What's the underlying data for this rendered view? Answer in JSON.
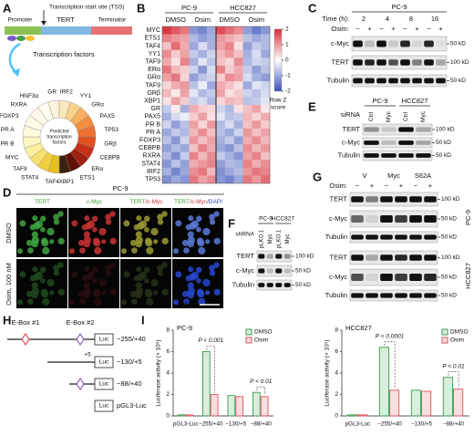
{
  "highlight": "MYC",
  "panels": {
    "A": {
      "letter": "A",
      "tss": "Transcription start site (TSS)",
      "promoter": "Promoter",
      "gene": "TERT",
      "terminator": "Terminator",
      "tf": "Transcription factors",
      "center": [
        "Predicted",
        "transcription",
        "factors"
      ],
      "factors": [
        "GR",
        "IRF2",
        "YY1",
        "GRα",
        "PAX5",
        "TP53",
        "GRβ",
        "CEBPB",
        "ERα",
        "ETS1",
        "XBP1",
        "TAF4",
        "STAT4",
        "TAF9",
        "MYC",
        "PR B",
        "PR A",
        "FOXP3",
        "RXRA",
        "HNF3α"
      ]
    },
    "B": {
      "letter": "B",
      "groups": [
        "PC-9",
        "HCC827"
      ],
      "conditions": [
        "DMSO",
        "Osim",
        "DMSO",
        "Osim"
      ],
      "rows": [
        "MYC",
        "ETS1",
        "TAF4",
        "YY1",
        "TAF9",
        "ERα",
        "GRα",
        "TAF9",
        "GRβ",
        "XBP1",
        "GR",
        "PAX5",
        "PR B",
        "PR A",
        "FOXP3",
        "CEBPB",
        "RXRA",
        "STAT4",
        "IRF2",
        "TP53"
      ],
      "matrix": [
        [
          1.9,
          1.6,
          1.3,
          -1.2,
          -1.4,
          -1.0,
          1.7,
          1.4,
          1.1,
          -1.1,
          -1.5,
          -1.2
        ],
        [
          1.2,
          1.0,
          0.9,
          -0.8,
          -1.1,
          -0.9,
          1.0,
          0.8,
          0.6,
          -0.7,
          -1.0,
          -0.8
        ],
        [
          0.6,
          1.4,
          0.8,
          -1.0,
          -0.4,
          -0.9,
          0.9,
          1.2,
          0.3,
          -1.1,
          -0.6,
          -0.8
        ],
        [
          1.1,
          0.5,
          0.9,
          -0.6,
          -0.9,
          -0.5,
          0.7,
          1.0,
          0.6,
          -0.9,
          -0.4,
          -1.0
        ],
        [
          0.8,
          0.3,
          1.2,
          -0.9,
          -0.3,
          -0.7,
          0.6,
          0.4,
          1.1,
          -0.8,
          -0.5,
          -0.6
        ],
        [
          1.3,
          0.7,
          0.5,
          -0.5,
          -1.2,
          -0.4,
          1.2,
          0.5,
          0.8,
          -0.6,
          -1.1,
          -0.7
        ],
        [
          0.9,
          1.3,
          0.4,
          -1.1,
          -0.7,
          -0.5,
          0.5,
          1.1,
          0.9,
          -0.4,
          -0.9,
          -1.1
        ],
        [
          0.4,
          0.8,
          1.0,
          -0.7,
          -0.2,
          -1.0,
          0.8,
          0.6,
          0.3,
          -1.0,
          -0.3,
          -0.5
        ],
        [
          0.7,
          0.2,
          0.9,
          -0.3,
          -0.8,
          -0.6,
          0.9,
          0.3,
          0.5,
          -0.5,
          -0.7,
          -0.4
        ],
        [
          0.3,
          0.9,
          0.5,
          -0.6,
          -0.4,
          -0.8,
          0.4,
          0.7,
          0.6,
          -0.7,
          -0.6,
          -0.3
        ],
        [
          -0.6,
          0.2,
          -0.9,
          0.8,
          0.5,
          0.4,
          -0.5,
          -0.8,
          0.3,
          0.6,
          0.9,
          0.2
        ],
        [
          -0.9,
          -0.4,
          -0.2,
          0.5,
          0.9,
          0.3,
          -0.3,
          -0.7,
          -0.6,
          0.7,
          0.4,
          0.8
        ],
        [
          -0.5,
          -1.1,
          -0.7,
          0.9,
          0.4,
          1.0,
          -0.8,
          -0.4,
          -0.9,
          0.6,
          1.0,
          0.5
        ],
        [
          -1.0,
          -0.6,
          -0.8,
          0.7,
          1.1,
          0.6,
          -0.7,
          -1.0,
          -0.5,
          1.0,
          0.6,
          0.9
        ],
        [
          -0.7,
          -1.2,
          -0.5,
          1.0,
          0.6,
          0.9,
          -0.9,
          -0.6,
          -1.1,
          0.8,
          1.1,
          0.7
        ],
        [
          -1.1,
          -0.8,
          -1.0,
          0.6,
          1.2,
          0.8,
          -1.0,
          -1.2,
          -0.7,
          1.1,
          0.7,
          1.0
        ],
        [
          -0.8,
          -1.3,
          -0.6,
          1.2,
          0.7,
          1.1,
          -0.6,
          -0.9,
          -1.2,
          0.9,
          1.2,
          0.6
        ],
        [
          -1.2,
          -0.7,
          -1.1,
          0.8,
          1.0,
          1.2,
          -1.1,
          -0.8,
          -0.9,
          1.2,
          0.8,
          1.1
        ],
        [
          -0.9,
          -1.4,
          -1.0,
          1.1,
          1.3,
          0.7,
          -1.3,
          -1.0,
          -0.8,
          1.0,
          1.3,
          1.2
        ],
        [
          -1.3,
          -1.0,
          -1.2,
          1.3,
          0.9,
          1.1,
          -1.2,
          -1.4,
          -1.0,
          1.3,
          1.0,
          1.4
        ]
      ],
      "zlim": [
        -2,
        2
      ],
      "zticks": [
        2,
        1,
        0,
        -1,
        -2
      ],
      "colorbar_label": [
        "Row Z",
        "score"
      ]
    },
    "C": {
      "letter": "C",
      "cell": "PC-9",
      "time_label": "Time (h):",
      "times": [
        2,
        4,
        8,
        16
      ],
      "osim_label": "Osim:",
      "osim": [
        "−",
        "+",
        "−",
        "+",
        "−",
        "+",
        "−",
        "+"
      ],
      "proteins": [
        "c-Myc",
        "TERT",
        "Tubulin"
      ],
      "markers": [
        "50 kD",
        "100 kD",
        "50 kD"
      ]
    },
    "D": {
      "letter": "D",
      "cell": "PC-9",
      "headers": [
        [
          "TERT"
        ],
        [
          "c-Myc"
        ],
        [
          "TERT",
          "/c-Myc"
        ],
        [
          "TERT",
          "/c-Myc",
          "/DAPI"
        ]
      ],
      "rows": [
        "DMSO",
        "Osim, 100 nM"
      ],
      "scale": "25 µm"
    },
    "E": {
      "letter": "E",
      "cells": [
        "PC-9",
        "HCC827"
      ],
      "sirna": "siRNA",
      "lanes": [
        "Ctrl",
        "Myc",
        "Ctrl",
        "Myc"
      ],
      "proteins": [
        "TERT",
        "c-Myc",
        "Tubulin"
      ],
      "markers": [
        "100 kD",
        "50 kD",
        "50 kD"
      ]
    },
    "F": {
      "letter": "F",
      "cells": [
        "PC-9",
        "HCC827"
      ],
      "shrna": "shRNA",
      "lanes": [
        "pLKO.1",
        "Myc",
        "pLKO.1",
        "Myc"
      ],
      "proteins": [
        "TERT",
        "c-Myc",
        "Tubulin"
      ],
      "markers": [
        "100 kD",
        "50 kD",
        "50 kD"
      ]
    },
    "G": {
      "letter": "G",
      "groups": [
        "V",
        "Myc",
        "S62A"
      ],
      "osim_label": "Osim:",
      "osim": [
        "−",
        "+",
        "−",
        "+",
        "−",
        "+"
      ],
      "blots": [
        {
          "cell": "PC-9",
          "proteins": [
            "TERT",
            "c-Myc",
            "Tubulin"
          ],
          "markers": [
            "100 kD",
            "50 kD",
            "50 kD"
          ]
        },
        {
          "cell": "HCC827",
          "proteins": [
            "TERT",
            "c-Myc",
            "Tubulin"
          ],
          "markers": [
            "100 kD",
            "50 kD",
            "50 kD"
          ]
        }
      ]
    },
    "H": {
      "letter": "H",
      "eboxes": [
        "E-Box #1",
        "E-Box #2"
      ],
      "constructs": [
        "−255/+40",
        "−130/+5",
        "−88/+40",
        "pGL3-Luc"
      ],
      "plus5": "+5",
      "luc": "Luc"
    },
    "I": {
      "letter": "I"
    }
  },
  "chart_data": [
    {
      "type": "bar",
      "title": "PC-9",
      "y_label": "Luciferase activity (× 10⁵)",
      "categories": [
        "pGL3-Luc",
        "−255/+40",
        "−130/+5",
        "−88/+40"
      ],
      "series": [
        {
          "name": "DMSO",
          "color": "#3a9a4a",
          "values": [
            0.1,
            6.0,
            1.9,
            2.2
          ]
        },
        {
          "name": "Osim",
          "color": "#e0505a",
          "values": [
            0.1,
            2.0,
            1.8,
            1.8
          ]
        }
      ],
      "ylim": [
        0,
        8
      ],
      "yticks": [
        0,
        2,
        4,
        6,
        8
      ],
      "annotations": [
        "P < 0.001",
        "P < 0.01"
      ],
      "legend": "upper right"
    },
    {
      "type": "bar",
      "title": "HCC827",
      "y_label": "Luciferase activity (× 10⁵)",
      "categories": [
        "pGL3-Luc",
        "−255/+40",
        "−130/+5",
        "−88/+40"
      ],
      "series": [
        {
          "name": "DMSO",
          "color": "#3a9a4a",
          "values": [
            0.1,
            6.4,
            2.4,
            3.6
          ]
        },
        {
          "name": "Osim",
          "color": "#e0505a",
          "values": [
            0.1,
            2.4,
            2.3,
            2.5
          ]
        }
      ],
      "ylim": [
        0,
        8
      ],
      "yticks": [
        0,
        2,
        4,
        6,
        8
      ],
      "annotations": [
        "P < 0.0001",
        "P < 0.01"
      ],
      "legend": "upper right"
    }
  ]
}
